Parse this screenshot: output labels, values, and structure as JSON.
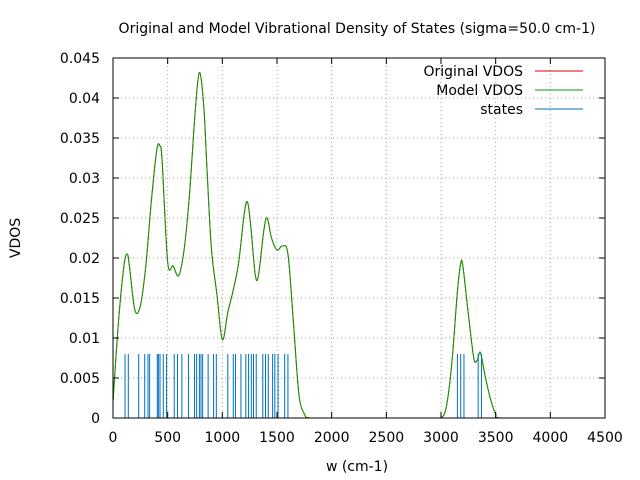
{
  "chart_data": {
    "type": "line",
    "title": "Original and Model Vibrational Density of States (sigma=50.0 cm-1)",
    "xlabel": "w (cm-1)",
    "ylabel": "VDOS",
    "xlim": [
      0,
      4500
    ],
    "ylim": [
      0,
      0.045
    ],
    "x_ticks": [
      0,
      500,
      1000,
      1500,
      2000,
      2500,
      3000,
      3500,
      4000,
      4500
    ],
    "y_ticks": [
      0,
      0.005,
      0.01,
      0.015,
      0.02,
      0.025,
      0.03,
      0.035,
      0.04,
      0.045
    ],
    "x_tick_labels": [
      "0",
      "500",
      "1000",
      "1500",
      "2000",
      "2500",
      "3000",
      "3500",
      "4000",
      "4500"
    ],
    "y_tick_labels": [
      "0",
      "0.005",
      "0.01",
      "0.015",
      "0.02",
      "0.025",
      "0.03",
      "0.035",
      "0.04",
      "0.045"
    ],
    "grid": true,
    "grid_style": "dotted",
    "legend_position": "top-right",
    "series": [
      {
        "name": "Original VDOS",
        "color": "#e00000",
        "style": "line",
        "x": [
          0,
          50,
          100,
          130,
          150,
          200,
          250,
          300,
          350,
          400,
          430,
          450,
          500,
          550,
          600,
          650,
          700,
          750,
          790,
          830,
          860,
          900,
          950,
          1000,
          1050,
          1100,
          1150,
          1200,
          1230,
          1260,
          1300,
          1330,
          1380,
          1410,
          1450,
          1500,
          1550,
          1600,
          1650,
          1700,
          1750,
          1800,
          2000,
          2500,
          2900,
          3000,
          3050,
          3100,
          3150,
          3180,
          3200,
          3250,
          3300,
          3330,
          3360,
          3400,
          3450,
          3500,
          3550,
          4000,
          4500
        ],
        "y": [
          0.002,
          0.012,
          0.019,
          0.0205,
          0.019,
          0.0135,
          0.014,
          0.019,
          0.027,
          0.0335,
          0.034,
          0.032,
          0.0195,
          0.019,
          0.0178,
          0.021,
          0.028,
          0.038,
          0.0432,
          0.039,
          0.031,
          0.0212,
          0.0155,
          0.0098,
          0.0132,
          0.016,
          0.0195,
          0.0255,
          0.027,
          0.024,
          0.018,
          0.0178,
          0.0235,
          0.025,
          0.0225,
          0.021,
          0.0215,
          0.0205,
          0.012,
          0.003,
          0.0005,
          0.0,
          0.0,
          0.0,
          0.0,
          0.0,
          0.0015,
          0.007,
          0.0158,
          0.0193,
          0.019,
          0.013,
          0.0075,
          0.0072,
          0.0082,
          0.0055,
          0.0025,
          0.0005,
          0.0,
          0.0,
          0.0
        ]
      },
      {
        "name": "Model VDOS",
        "color": "#00a000",
        "style": "line",
        "x": [
          0,
          50,
          100,
          130,
          150,
          200,
          250,
          300,
          350,
          400,
          430,
          450,
          500,
          550,
          600,
          650,
          700,
          750,
          790,
          830,
          860,
          900,
          950,
          1000,
          1050,
          1100,
          1150,
          1200,
          1230,
          1260,
          1300,
          1330,
          1380,
          1410,
          1450,
          1500,
          1550,
          1600,
          1650,
          1700,
          1750,
          1800,
          2000,
          2500,
          2900,
          3000,
          3050,
          3100,
          3150,
          3180,
          3200,
          3250,
          3300,
          3330,
          3360,
          3400,
          3450,
          3500,
          3550,
          4000,
          4500
        ],
        "y": [
          0.002,
          0.012,
          0.019,
          0.0205,
          0.019,
          0.0135,
          0.014,
          0.019,
          0.027,
          0.0335,
          0.034,
          0.032,
          0.0195,
          0.019,
          0.0178,
          0.021,
          0.028,
          0.038,
          0.0432,
          0.039,
          0.031,
          0.0212,
          0.0155,
          0.0098,
          0.0132,
          0.016,
          0.0195,
          0.0255,
          0.027,
          0.024,
          0.018,
          0.0178,
          0.0235,
          0.025,
          0.0225,
          0.021,
          0.0215,
          0.0205,
          0.012,
          0.003,
          0.0005,
          0.0,
          0.0,
          0.0,
          0.0,
          0.0,
          0.0015,
          0.007,
          0.0158,
          0.0193,
          0.019,
          0.013,
          0.0075,
          0.0072,
          0.0082,
          0.0055,
          0.0025,
          0.0005,
          0.0,
          0.0,
          0.0
        ]
      },
      {
        "name": "states",
        "color": "#0070c0",
        "style": "impulses",
        "x": [
          110,
          140,
          235,
          290,
          320,
          335,
          405,
          415,
          430,
          460,
          490,
          560,
          590,
          630,
          690,
          745,
          765,
          790,
          805,
          820,
          870,
          920,
          945,
          1050,
          1100,
          1120,
          1170,
          1215,
          1240,
          1265,
          1285,
          1310,
          1370,
          1395,
          1420,
          1460,
          1480,
          1510,
          1570,
          1600,
          3150,
          3180,
          3210,
          3340,
          3370
        ],
        "y": [
          0.008,
          0.008,
          0.008,
          0.008,
          0.008,
          0.008,
          0.008,
          0.008,
          0.008,
          0.008,
          0.008,
          0.008,
          0.008,
          0.008,
          0.008,
          0.008,
          0.008,
          0.008,
          0.008,
          0.008,
          0.008,
          0.008,
          0.008,
          0.008,
          0.008,
          0.008,
          0.008,
          0.008,
          0.008,
          0.008,
          0.008,
          0.008,
          0.008,
          0.008,
          0.008,
          0.008,
          0.008,
          0.008,
          0.008,
          0.008,
          0.008,
          0.008,
          0.008,
          0.008,
          0.008
        ]
      }
    ]
  }
}
